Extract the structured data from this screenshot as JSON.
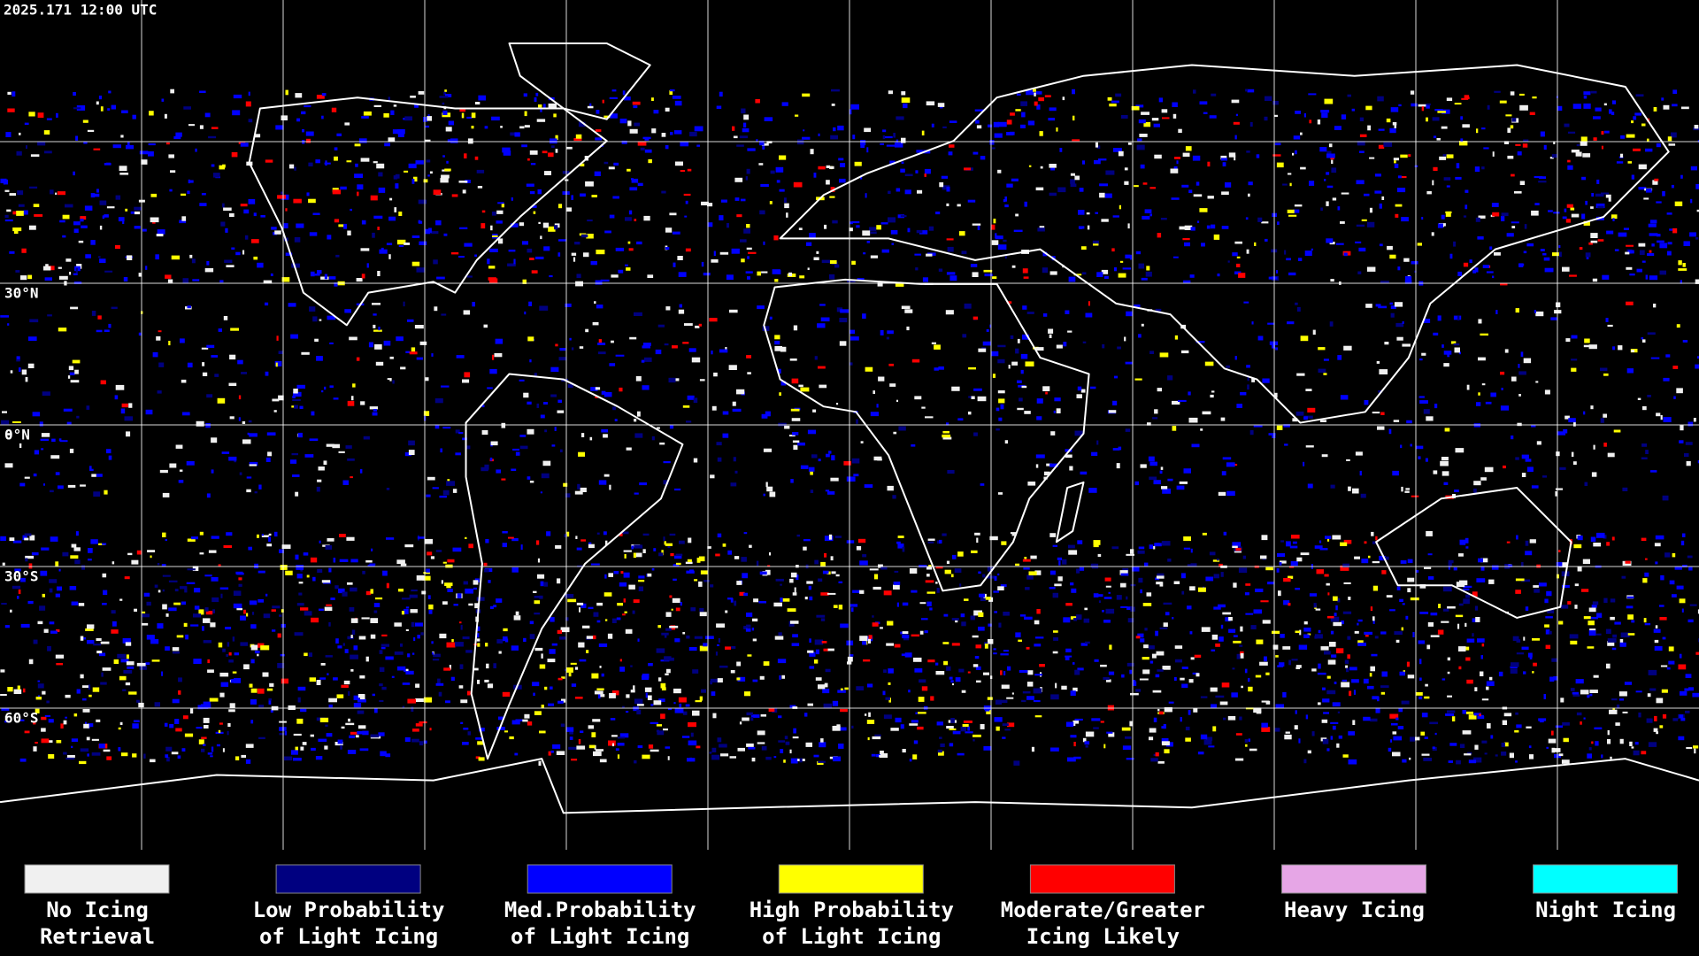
{
  "timestamp": "2025.171 12:00 UTC",
  "latitude_labels": [
    "30°N",
    "0°N",
    "30°S",
    "60°S"
  ],
  "legend": [
    {
      "lines": [
        "No Icing",
        "Retrieval"
      ],
      "color": "#f0f0f0"
    },
    {
      "lines": [
        "Low Probability",
        "of Light Icing"
      ],
      "color": "#000080"
    },
    {
      "lines": [
        "Med.Probability",
        "of Light Icing"
      ],
      "color": "#0000ff"
    },
    {
      "lines": [
        "High Probability",
        "of Light Icing"
      ],
      "color": "#ffff00"
    },
    {
      "lines": [
        "Moderate/Greater",
        "Icing Likely"
      ],
      "color": "#ff0000"
    },
    {
      "lines": [
        "Heavy Icing"
      ],
      "color": "#e6a6e6"
    },
    {
      "lines": [
        "Night Icing"
      ],
      "color": "#00ffff"
    }
  ]
}
